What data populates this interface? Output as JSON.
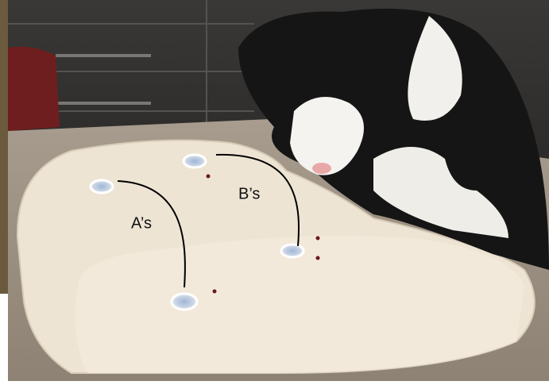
{
  "annotations": [
    {
      "label": "A’s"
    },
    {
      "label": "B’s"
    }
  ]
}
